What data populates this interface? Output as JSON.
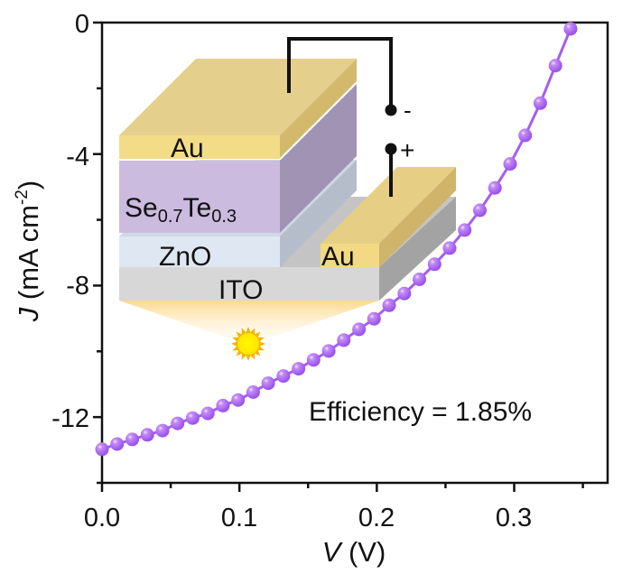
{
  "chart_data": {
    "type": "line",
    "title": "",
    "xlabel": "V (V)",
    "xlabel_var": "V",
    "xlabel_unit": " (V)",
    "ylabel_var": "J",
    "ylabel_unit_pre": " (mA cm",
    "ylabel_unit_sup": "-2",
    "ylabel_unit_post": ")",
    "xlim": [
      0,
      0.368
    ],
    "ylim": [
      -14,
      0
    ],
    "xticks": [
      0.0,
      0.1,
      0.2,
      0.3
    ],
    "xtick_labels": [
      "0.0",
      "0.1",
      "0.2",
      "0.3"
    ],
    "xminor": [
      0.05,
      0.15,
      0.25,
      0.35
    ],
    "yticks": [
      0,
      -4,
      -8,
      -12
    ],
    "ytick_labels": [
      "0",
      "-4",
      "-8",
      "-12"
    ],
    "yminor": [
      -2,
      -6,
      -10,
      -14
    ],
    "grid": false,
    "series": [
      {
        "name": "J-V curve",
        "color": "#a45ef0",
        "marker": "sphere",
        "x": [
          0.0,
          0.011,
          0.022,
          0.033,
          0.044,
          0.055,
          0.066,
          0.077,
          0.088,
          0.099,
          0.11,
          0.121,
          0.132,
          0.143,
          0.154,
          0.165,
          0.176,
          0.187,
          0.198,
          0.209,
          0.22,
          0.231,
          0.242,
          0.253,
          0.264,
          0.275,
          0.286,
          0.297,
          0.308,
          0.319,
          0.33,
          0.341
        ],
        "y": [
          -12.98,
          -12.82,
          -12.68,
          -12.54,
          -12.41,
          -12.19,
          -12.03,
          -11.89,
          -11.65,
          -11.48,
          -11.24,
          -10.97,
          -10.75,
          -10.53,
          -10.26,
          -9.99,
          -9.66,
          -9.33,
          -9.01,
          -8.6,
          -8.24,
          -7.81,
          -7.35,
          -6.86,
          -6.31,
          -5.71,
          -5.03,
          -4.3,
          -3.43,
          -2.45,
          -1.31,
          -0.19
        ]
      }
    ],
    "annotations": [
      {
        "text": "Efficiency = 1.85%",
        "position": "bottom-right"
      }
    ],
    "inset": {
      "description": "device schematic",
      "layers": {
        "top_electrode": "Au",
        "absorber_main": "Se",
        "absorber_sub1": "0.7",
        "absorber_mid": "Te",
        "absorber_sub2": "0.3",
        "etl": "ZnO",
        "substrate": "ITO",
        "side_electrode": "Au"
      },
      "terminals": {
        "negative": "-",
        "positive": "+"
      },
      "illumination": "sun"
    }
  }
}
